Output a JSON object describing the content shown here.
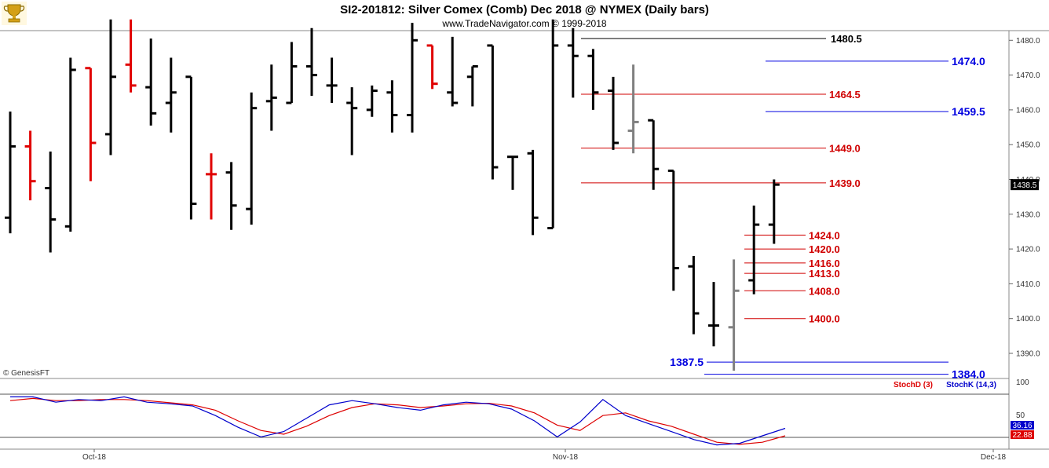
{
  "header": {
    "title": "SI2-201812:  Silver Comex (Comb) Dec 2018 @ NYMEX  (Daily bars)",
    "subtitle": "www.TradeNavigator.com © 1999-2018",
    "watermark": "© GenesisFT",
    "logo_icon": "trophy-icon"
  },
  "colors": {
    "up_bar": "#000000",
    "down_bar": "#e00000",
    "inside_bar": "#808080",
    "blue_level": "#0000e0",
    "red_level": "#d00000",
    "stoch_k": "#0000cc",
    "stoch_d": "#dd0000"
  },
  "chart_data": [
    {
      "type": "ohlc",
      "title": "SI2-201812:  Silver Comex (Comb) Dec 2018 @ NYMEX  (Daily bars)",
      "ylim": [
        1384,
        1486
      ],
      "y_ticks": [
        "1390.0",
        "1400.0",
        "1410.0",
        "1420.0",
        "1430.0",
        "1440.0",
        "1450.0",
        "1460.0",
        "1470.0",
        "1480.0"
      ],
      "x_ticks": [
        "Oct-18",
        "Nov-18",
        "Dec-18"
      ],
      "last_price": "1438.5",
      "bars": [
        {
          "o": 1429.0,
          "h": 1459.5,
          "l": 1424.5,
          "c": 1449.5,
          "color": "black"
        },
        {
          "o": 1449.5,
          "h": 1454.0,
          "l": 1434.0,
          "c": 1439.5,
          "color": "red"
        },
        {
          "o": 1437.5,
          "h": 1448.0,
          "l": 1419.0,
          "c": 1428.5,
          "color": "black"
        },
        {
          "o": 1426.5,
          "h": 1475.0,
          "l": 1425.0,
          "c": 1471.5,
          "color": "black"
        },
        {
          "o": 1472.0,
          "h": 1472.0,
          "l": 1439.5,
          "c": 1450.5,
          "color": "red"
        },
        {
          "o": 1453.0,
          "h": 1486.0,
          "l": 1447.0,
          "c": 1469.5,
          "color": "black"
        },
        {
          "o": 1473.0,
          "h": 1486.0,
          "l": 1465.0,
          "c": 1467.0,
          "color": "red"
        },
        {
          "o": 1466.5,
          "h": 1480.5,
          "l": 1455.5,
          "c": 1459.0,
          "color": "black"
        },
        {
          "o": 1462.0,
          "h": 1475.0,
          "l": 1453.5,
          "c": 1465.0,
          "color": "black"
        },
        {
          "o": 1469.5,
          "h": 1469.5,
          "l": 1428.5,
          "c": 1433.0,
          "color": "black"
        },
        {
          "o": 1441.5,
          "h": 1447.5,
          "l": 1428.5,
          "c": 1441.5,
          "color": "red"
        },
        {
          "o": 1442.0,
          "h": 1445.0,
          "l": 1425.5,
          "c": 1432.5,
          "color": "black"
        },
        {
          "o": 1431.5,
          "h": 1465.0,
          "l": 1427.0,
          "c": 1460.5,
          "color": "black"
        },
        {
          "o": 1462.5,
          "h": 1473.0,
          "l": 1454.0,
          "c": 1463.5,
          "color": "black"
        },
        {
          "o": 1462.0,
          "h": 1479.5,
          "l": 1462.0,
          "c": 1472.5,
          "color": "black"
        },
        {
          "o": 1472.5,
          "h": 1483.5,
          "l": 1464.0,
          "c": 1470.0,
          "color": "black"
        },
        {
          "o": 1467.0,
          "h": 1475.0,
          "l": 1462.0,
          "c": 1467.0,
          "color": "black"
        },
        {
          "o": 1462.0,
          "h": 1466.5,
          "l": 1447.0,
          "c": 1460.5,
          "color": "black"
        },
        {
          "o": 1460.0,
          "h": 1467.0,
          "l": 1458.0,
          "c": 1465.5,
          "color": "black"
        },
        {
          "o": 1465.0,
          "h": 1468.5,
          "l": 1453.5,
          "c": 1458.5,
          "color": "black"
        },
        {
          "o": 1458.5,
          "h": 1485.0,
          "l": 1453.5,
          "c": 1480.0,
          "color": "black"
        },
        {
          "o": 1478.5,
          "h": 1478.5,
          "l": 1466.0,
          "c": 1467.5,
          "color": "red"
        },
        {
          "o": 1465.0,
          "h": 1481.0,
          "l": 1461.0,
          "c": 1462.0,
          "color": "black"
        },
        {
          "o": 1469.5,
          "h": 1472.5,
          "l": 1461.0,
          "c": 1472.5,
          "color": "black"
        },
        {
          "o": 1478.5,
          "h": 1478.5,
          "l": 1440.0,
          "c": 1443.5,
          "color": "black"
        },
        {
          "o": 1446.5,
          "h": 1446.5,
          "l": 1437.0,
          "c": 1446.5,
          "color": "black"
        },
        {
          "o": 1447.5,
          "h": 1448.5,
          "l": 1424.0,
          "c": 1429.0,
          "color": "black"
        },
        {
          "o": 1426.0,
          "h": 1486.0,
          "l": 1426.0,
          "c": 1478.5,
          "color": "black"
        },
        {
          "o": 1478.5,
          "h": 1483.5,
          "l": 1463.5,
          "c": 1475.5,
          "color": "black"
        },
        {
          "o": 1475.5,
          "h": 1477.5,
          "l": 1460.0,
          "c": 1465.0,
          "color": "black"
        },
        {
          "o": 1465.5,
          "h": 1469.5,
          "l": 1448.5,
          "c": 1450.5,
          "color": "black"
        },
        {
          "o": 1454.0,
          "h": 1473.0,
          "l": 1447.5,
          "c": 1456.5,
          "color": "gray"
        },
        {
          "o": 1457.0,
          "h": 1457.0,
          "l": 1437.0,
          "c": 1443.0,
          "color": "black"
        },
        {
          "o": 1442.5,
          "h": 1442.5,
          "l": 1408.0,
          "c": 1414.5,
          "color": "black"
        },
        {
          "o": 1415.0,
          "h": 1418.0,
          "l": 1395.5,
          "c": 1401.5,
          "color": "black"
        },
        {
          "o": 1398.0,
          "h": 1410.5,
          "l": 1392.0,
          "c": 1398.0,
          "color": "black"
        },
        {
          "o": 1397.5,
          "h": 1417.0,
          "l": 1385.0,
          "c": 1408.0,
          "color": "gray"
        },
        {
          "o": 1411.0,
          "h": 1432.5,
          "l": 1407.0,
          "c": 1427.0,
          "color": "black"
        },
        {
          "o": 1427.0,
          "h": 1440.0,
          "l": 1421.5,
          "c": 1438.5,
          "color": "black"
        }
      ],
      "levels": [
        {
          "label": "1480.5",
          "value": 1480.5,
          "color": "black"
        },
        {
          "label": "1474.0",
          "value": 1474.0,
          "color": "blue"
        },
        {
          "label": "1464.5",
          "value": 1464.5,
          "color": "red"
        },
        {
          "label": "1459.5",
          "value": 1459.5,
          "color": "blue"
        },
        {
          "label": "1449.0",
          "value": 1449.0,
          "color": "red"
        },
        {
          "label": "1439.0",
          "value": 1439.0,
          "color": "red"
        },
        {
          "label": "1424.0",
          "value": 1424.0,
          "color": "red"
        },
        {
          "label": "1420.0",
          "value": 1420.0,
          "color": "red"
        },
        {
          "label": "1416.0",
          "value": 1416.0,
          "color": "red"
        },
        {
          "label": "1413.0",
          "value": 1413.0,
          "color": "red"
        },
        {
          "label": "1408.0",
          "value": 1408.0,
          "color": "red"
        },
        {
          "label": "1400.0",
          "value": 1400.0,
          "color": "red"
        },
        {
          "label": "1387.5",
          "value": 1387.5,
          "color": "blue"
        },
        {
          "label": "1384.0",
          "value": 1384.0,
          "color": "blue"
        }
      ]
    },
    {
      "type": "line",
      "ylim": [
        0,
        100
      ],
      "y_ticks": [
        "100",
        "50"
      ],
      "series": [
        {
          "name": "StochK (14,3)",
          "last": "36.16",
          "values": [
            95,
            95,
            85,
            90,
            88,
            95,
            85,
            82,
            78,
            60,
            38,
            20,
            30,
            55,
            80,
            88,
            82,
            75,
            70,
            80,
            85,
            82,
            72,
            50,
            20,
            48,
            90,
            60,
            45,
            30,
            15,
            5,
            8,
            22,
            36
          ]
        },
        {
          "name": "StochD (3)",
          "last": "22.88",
          "values": [
            88,
            92,
            88,
            88,
            90,
            90,
            88,
            84,
            80,
            70,
            50,
            32,
            25,
            40,
            60,
            75,
            82,
            80,
            75,
            78,
            82,
            83,
            78,
            65,
            42,
            32,
            60,
            65,
            50,
            40,
            25,
            10,
            6,
            10,
            22
          ]
        }
      ]
    }
  ]
}
